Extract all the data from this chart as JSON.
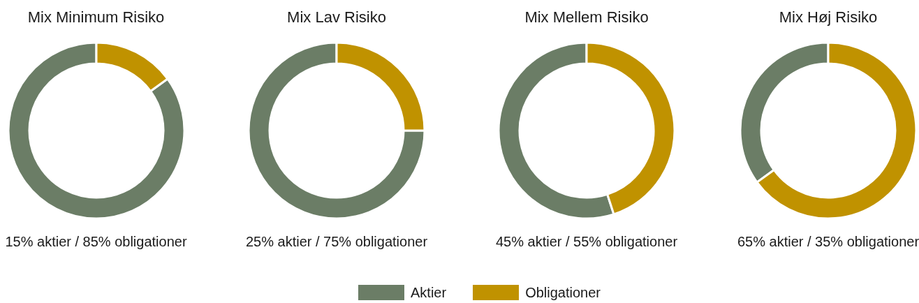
{
  "chart_data": [
    {
      "type": "donut",
      "title": "Mix Minimum Risiko",
      "categories": [
        "Aktier",
        "Obligationer"
      ],
      "values": [
        85,
        15
      ],
      "colors": [
        "#6b7d66",
        "#c09200"
      ],
      "annotations": [
        "15% aktier / 85% obligationer"
      ],
      "legend": "bottom"
    },
    {
      "type": "donut",
      "title": "Mix Lav Risiko",
      "categories": [
        null,
        null
      ],
      "values": [
        75,
        25
      ],
      "colors": [
        "#6b7d66",
        "#c09200"
      ],
      "annotations": [
        "25% aktier / 75% obligationer"
      ]
    },
    {
      "type": "donut",
      "title": "Mix Mellem Risiko",
      "categories": [
        null,
        null
      ],
      "values": [
        55,
        45
      ],
      "colors": [
        "#6b7d66",
        "#c09200"
      ],
      "annotations": [
        "45% aktier / 55% obligationer"
      ]
    },
    {
      "type": "donut",
      "title": "Mix Høj Risiko",
      "categories": [
        null,
        null
      ],
      "values": [
        35,
        65
      ],
      "colors": [
        "#6b7d66",
        "#c09200"
      ],
      "annotations": [
        "65% aktier / 35% obligationer"
      ]
    }
  ]
}
